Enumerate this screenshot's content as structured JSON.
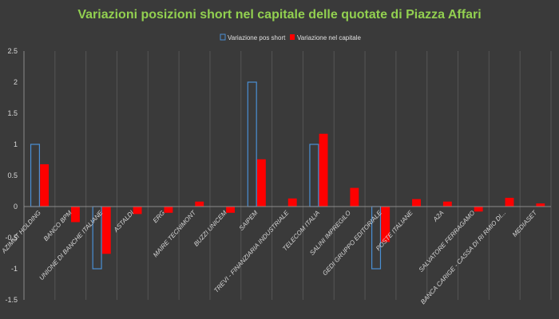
{
  "chart_data": {
    "type": "bar",
    "title": "Variazioni posizioni short nel capitale delle quotate di Piazza Affari",
    "categories": [
      "AZIMUT HOLDING",
      "BANCO BPM",
      "UNIONE DI BANCHE ITALIANE",
      "ASTALDI",
      "ERG",
      "MAIRE TECNIMONT",
      "BUZZI UNICEM",
      "SAIPEM",
      "TREVI - FINANZIARIA INDUSTRIALE",
      "TELECOM ITALIA",
      "SALINI IMPREGILO",
      "GEDI GRUPPO EDITORIALE",
      "POSTE ITALIANE",
      "A2A",
      "SALVATORE FERRAGAMO",
      "BANCA CARIGE - CASSA DI RI RMIO DI...",
      "MEDIASET"
    ],
    "series": [
      {
        "name": "Variazione pos short",
        "style": "outline",
        "color": "#4a8fd4",
        "values": [
          1,
          0,
          -1,
          0,
          0,
          0,
          0,
          2,
          0,
          1,
          0,
          -1,
          0,
          0,
          0,
          0,
          0
        ]
      },
      {
        "name": "Variazione nel capitale",
        "style": "filled",
        "color": "#ff0000",
        "values": [
          0.68,
          -0.25,
          -0.76,
          -0.12,
          -0.1,
          0.08,
          -0.1,
          0.76,
          0.13,
          1.17,
          0.3,
          -0.57,
          0.12,
          0.08,
          -0.08,
          0.14,
          0.05
        ]
      }
    ],
    "ylim": [
      -1.5,
      2.5
    ],
    "yticks": [
      "2.5",
      "2",
      "1.5",
      "1",
      "0.5",
      "0",
      "-0.5",
      "-1",
      "-1.5"
    ],
    "ytick_values": [
      2.5,
      2,
      1.5,
      1,
      0.5,
      0,
      -0.5,
      -1,
      -1.5
    ],
    "grid": "vertical",
    "legend_position": "top",
    "colors": {
      "background": "#3a3a3a",
      "title": "#92d050",
      "grid": "#555555",
      "axis": "#8a8a8a"
    }
  }
}
